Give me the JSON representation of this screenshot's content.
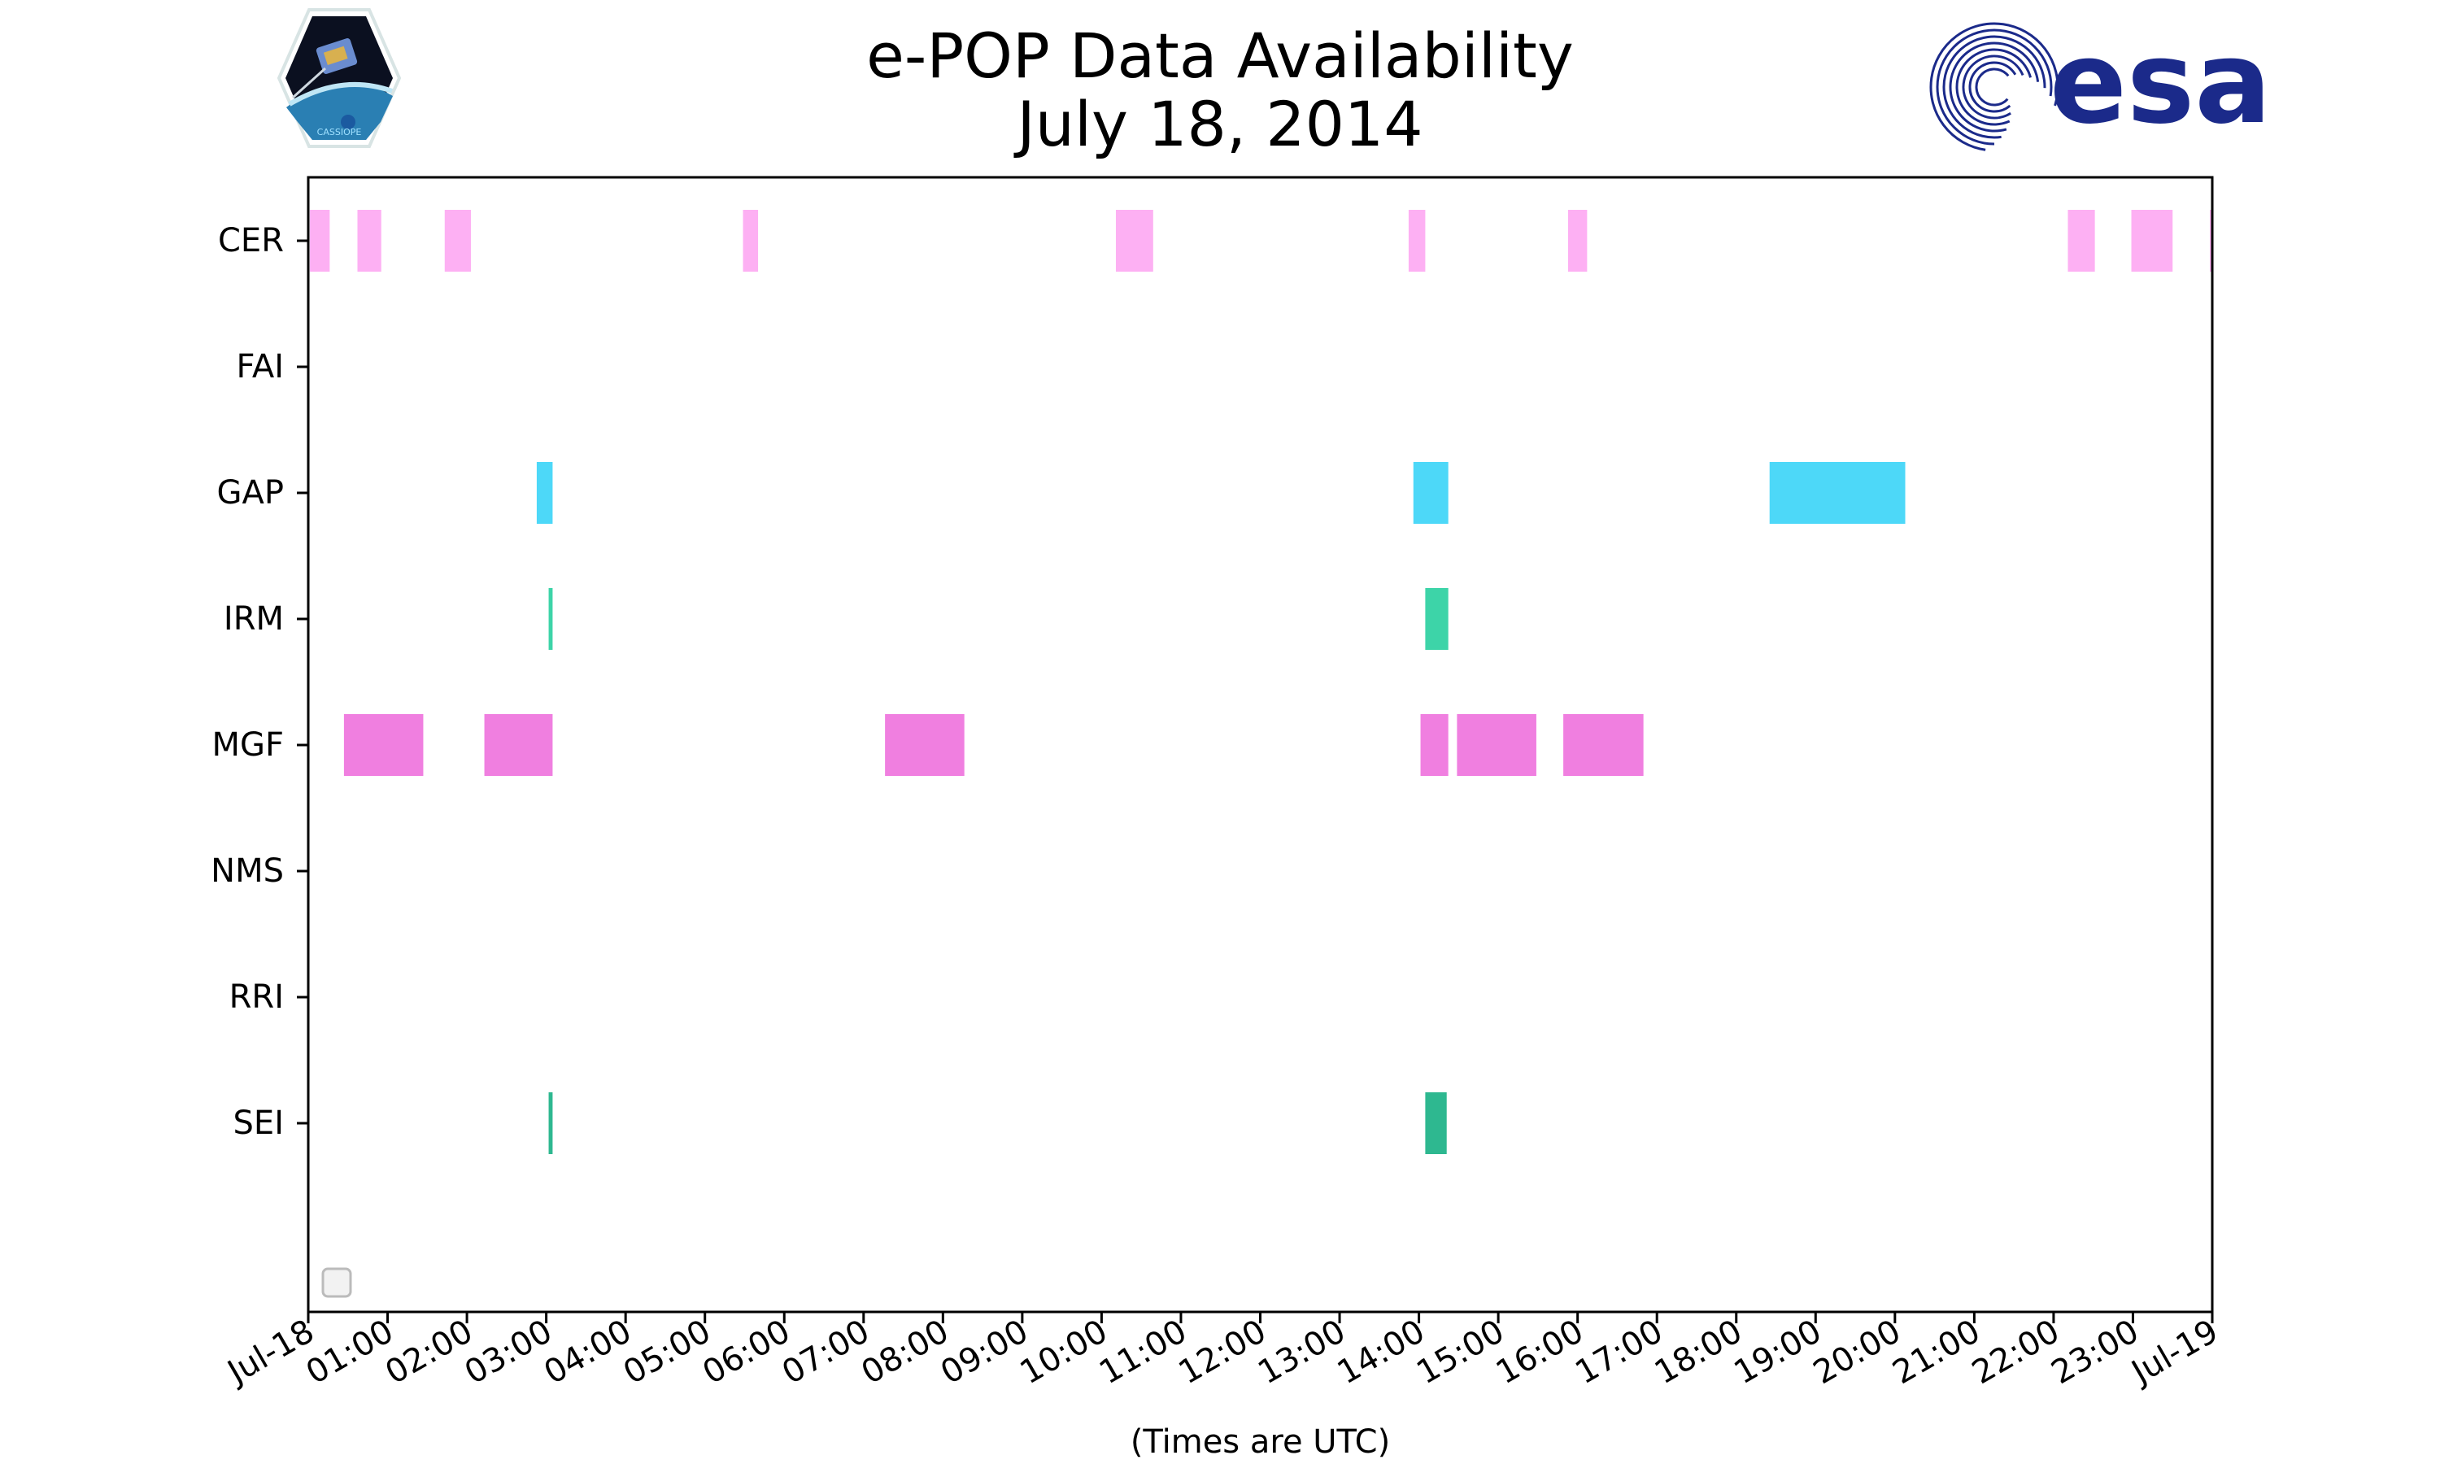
{
  "chart_data": {
    "type": "timeline",
    "title": "e-POP Data Availability",
    "subtitle": "July 18, 2014",
    "xlabel": "(Times are UTC)",
    "x_unit": "hours",
    "xlim": [
      0,
      24
    ],
    "x_ticks": [
      {
        "value": 0,
        "label": "Jul-18"
      },
      {
        "value": 1,
        "label": "01:00"
      },
      {
        "value": 2,
        "label": "02:00"
      },
      {
        "value": 3,
        "label": "03:00"
      },
      {
        "value": 4,
        "label": "04:00"
      },
      {
        "value": 5,
        "label": "05:00"
      },
      {
        "value": 6,
        "label": "06:00"
      },
      {
        "value": 7,
        "label": "07:00"
      },
      {
        "value": 8,
        "label": "08:00"
      },
      {
        "value": 9,
        "label": "09:00"
      },
      {
        "value": 10,
        "label": "10:00"
      },
      {
        "value": 11,
        "label": "11:00"
      },
      {
        "value": 12,
        "label": "12:00"
      },
      {
        "value": 13,
        "label": "13:00"
      },
      {
        "value": 14,
        "label": "14:00"
      },
      {
        "value": 15,
        "label": "15:00"
      },
      {
        "value": 16,
        "label": "16:00"
      },
      {
        "value": 17,
        "label": "17:00"
      },
      {
        "value": 18,
        "label": "18:00"
      },
      {
        "value": 19,
        "label": "19:00"
      },
      {
        "value": 20,
        "label": "20:00"
      },
      {
        "value": 21,
        "label": "21:00"
      },
      {
        "value": 22,
        "label": "22:00"
      },
      {
        "value": 23,
        "label": "23:00"
      },
      {
        "value": 24,
        "label": "Jul-19"
      }
    ],
    "series": [
      {
        "name": "CER",
        "color": "#FDB0F3",
        "intervals": [
          [
            0.02,
            0.27
          ],
          [
            0.62,
            0.92
          ],
          [
            1.72,
            2.05
          ],
          [
            5.48,
            5.67
          ],
          [
            10.18,
            10.65
          ],
          [
            13.87,
            14.08
          ],
          [
            15.88,
            16.12
          ],
          [
            22.18,
            22.52
          ],
          [
            22.98,
            23.5
          ],
          [
            23.97,
            24.0
          ]
        ]
      },
      {
        "name": "FAI",
        "color": "#cccccc",
        "intervals": []
      },
      {
        "name": "GAP",
        "color": "#4DD8F8",
        "intervals": [
          [
            2.88,
            3.08
          ],
          [
            13.93,
            14.37
          ],
          [
            18.42,
            20.13
          ]
        ]
      },
      {
        "name": "IRM",
        "color": "#3DD4A8",
        "intervals": [
          [
            3.03,
            3.08
          ],
          [
            14.08,
            14.37
          ]
        ]
      },
      {
        "name": "MGF",
        "color": "#F07FE0",
        "intervals": [
          [
            0.45,
            1.45
          ],
          [
            2.22,
            3.08
          ],
          [
            7.27,
            8.27
          ],
          [
            14.02,
            14.37
          ],
          [
            14.48,
            15.48
          ],
          [
            15.82,
            16.83
          ]
        ]
      },
      {
        "name": "NMS",
        "color": "#cccccc",
        "intervals": []
      },
      {
        "name": "RRI",
        "color": "#cccccc",
        "intervals": []
      },
      {
        "name": "SEI",
        "color": "#2EB890",
        "intervals": [
          [
            3.03,
            3.08
          ],
          [
            14.08,
            14.35
          ]
        ]
      }
    ],
    "legend": "lower-left, empty"
  },
  "logos": {
    "cassiope": {
      "name": "cassiope-logo",
      "text": "CASSIOPE"
    },
    "esa": {
      "name": "esa-logo",
      "text": "esa",
      "color": "#1B2A8A"
    }
  }
}
